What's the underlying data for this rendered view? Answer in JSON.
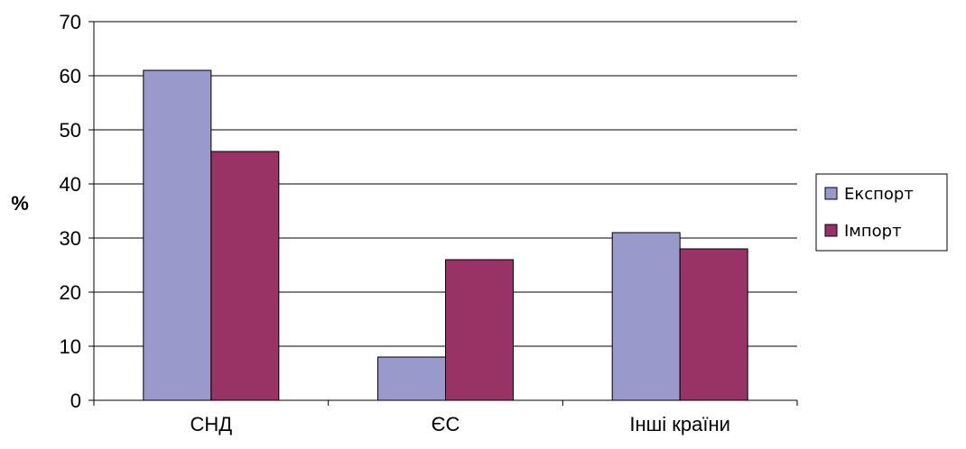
{
  "chart_data": {
    "type": "bar",
    "categories": [
      "СНД",
      "ЄС",
      "Інші країни"
    ],
    "series": [
      {
        "name": "Експорт",
        "values": [
          61,
          8,
          31
        ],
        "color": "#9999cc"
      },
      {
        "name": "Імпорт",
        "values": [
          46,
          26,
          28
        ],
        "color": "#993366"
      }
    ],
    "title": "",
    "xlabel": "",
    "ylabel": "%",
    "ylim": [
      0,
      70
    ],
    "yticks": [
      0,
      10,
      20,
      30,
      40,
      50,
      60,
      70
    ],
    "grid": true,
    "legend_position": "right"
  }
}
